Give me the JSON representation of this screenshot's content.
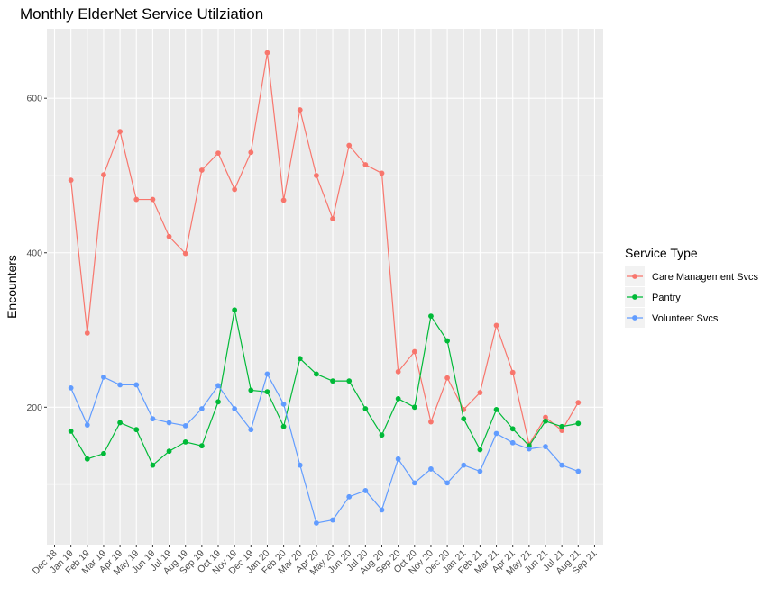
{
  "chart_data": {
    "type": "line",
    "title": "Monthly ElderNet Service Utilziation",
    "xlabel": "",
    "ylabel": "Encounters",
    "x_ticks": [
      "Dec 18",
      "Jan 19",
      "Feb 19",
      "Mar 19",
      "Apr 19",
      "May 19",
      "Jun 19",
      "Jul 19",
      "Aug 19",
      "Sep 19",
      "Oct 19",
      "Nov 19",
      "Dec 19",
      "Jan 20",
      "Feb 20",
      "Mar 20",
      "Apr 20",
      "May 20",
      "Jun 20",
      "Jul 20",
      "Aug 20",
      "Sep 20",
      "Oct 20",
      "Nov 20",
      "Dec 20",
      "Jan 21",
      "Feb 21",
      "Mar 21",
      "Apr 21",
      "May 21",
      "Jun 21",
      "Jul 21",
      "Aug 21",
      "Sep 21"
    ],
    "x": [
      "Jan 19",
      "Feb 19",
      "Mar 19",
      "Apr 19",
      "May 19",
      "Jun 19",
      "Jul 19",
      "Aug 19",
      "Sep 19",
      "Oct 19",
      "Nov 19",
      "Dec 19",
      "Jan 20",
      "Feb 20",
      "Mar 20",
      "Apr 20",
      "May 20",
      "Jun 20",
      "Jul 20",
      "Aug 20",
      "Sep 20",
      "Oct 20",
      "Nov 20",
      "Dec 20",
      "Jan 21",
      "Feb 21",
      "Mar 21",
      "Apr 21",
      "May 21",
      "Jun 21",
      "Jul 21",
      "Aug 21"
    ],
    "y_ticks": [
      200,
      400,
      600
    ],
    "ylim": [
      22,
      690
    ],
    "grid": true,
    "legend_title": "Service Type",
    "legend_position": "right",
    "series": [
      {
        "name": "Care Management Svcs",
        "color": "#F8766D",
        "values": [
          494,
          296,
          501,
          557,
          469,
          469,
          421,
          399,
          507,
          529,
          482,
          530,
          659,
          468,
          585,
          500,
          444,
          539,
          514,
          503,
          246,
          272,
          181,
          238,
          197,
          219,
          306,
          245,
          152,
          187,
          170,
          206
        ]
      },
      {
        "name": "Pantry",
        "color": "#00BA38",
        "values": [
          169,
          133,
          140,
          180,
          171,
          125,
          143,
          155,
          150,
          207,
          326,
          222,
          220,
          175,
          263,
          243,
          234,
          234,
          198,
          164,
          211,
          200,
          318,
          286,
          185,
          145,
          197,
          172,
          150,
          182,
          175,
          179
        ]
      },
      {
        "name": "Volunteer Svcs",
        "color": "#619CFF",
        "values": [
          225,
          177,
          239,
          229,
          229,
          185,
          180,
          176,
          198,
          228,
          198,
          171,
          243,
          204,
          125,
          50,
          54,
          84,
          92,
          67,
          133,
          102,
          120,
          102,
          125,
          117,
          166,
          154,
          146,
          149,
          125,
          117
        ]
      }
    ]
  }
}
